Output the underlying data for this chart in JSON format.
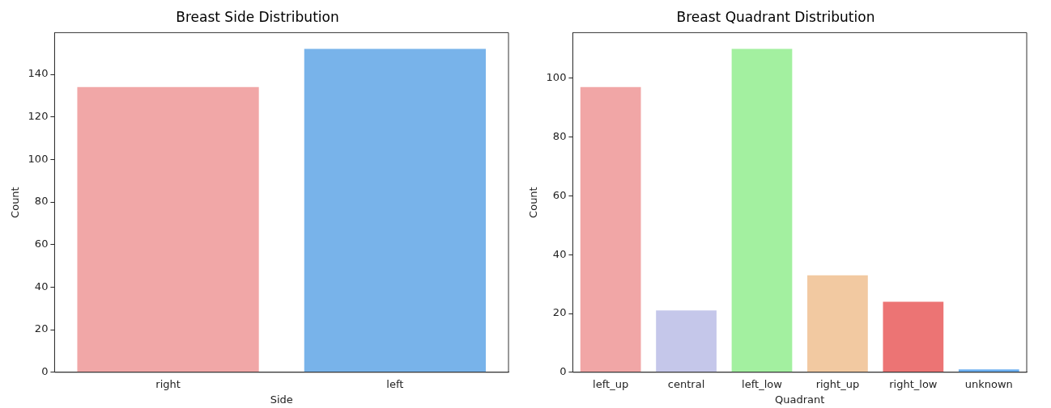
{
  "chart_data": [
    {
      "type": "bar",
      "title": "Breast Side Distribution",
      "xlabel": "Side",
      "ylabel": "Count",
      "categories": [
        "right",
        "left"
      ],
      "values": [
        134,
        152
      ],
      "colors": [
        "#f1a7a7",
        "#78b3ea"
      ],
      "ylim": [
        0,
        159.6
      ],
      "yticks": [
        0,
        20,
        40,
        60,
        80,
        100,
        120,
        140
      ],
      "grid": false,
      "legend": false
    },
    {
      "type": "bar",
      "title": "Breast Quadrant Distribution",
      "xlabel": "Quadrant",
      "ylabel": "Count",
      "categories": [
        "left_up",
        "central",
        "left_low",
        "right_up",
        "right_low",
        "unknown"
      ],
      "values": [
        97,
        21,
        110,
        33,
        24,
        1
      ],
      "colors": [
        "#f1a6a6",
        "#c5c7ea",
        "#a3f0a0",
        "#f2c9a1",
        "#ec7474",
        "#6aaef0"
      ],
      "ylim": [
        0,
        115.5
      ],
      "yticks": [
        0,
        20,
        40,
        60,
        80,
        100
      ],
      "grid": false,
      "legend": false
    }
  ]
}
